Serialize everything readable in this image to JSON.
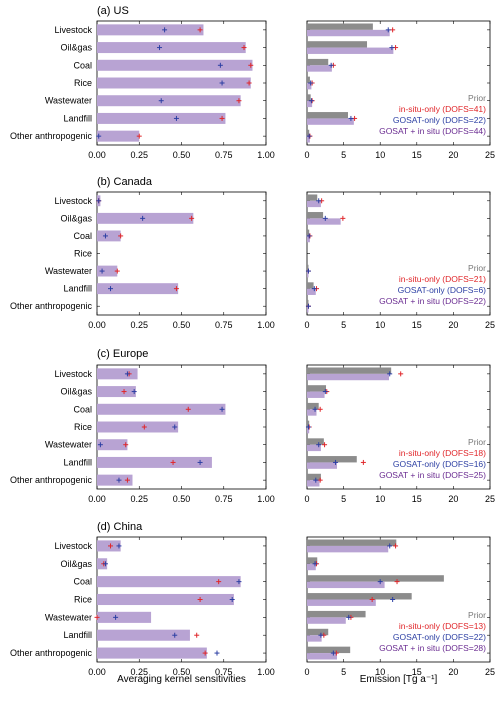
{
  "colors": {
    "combined_bar": "#b8a3d3",
    "prior_bar": "#8c8c8c",
    "combined_light_bar": "#b8a3d3",
    "insitu": "#e0262a",
    "gosat": "#2c3fa3",
    "combined": "#6a2c91",
    "prior_text": "#777777"
  },
  "left_axis": {
    "label": "Averaging kernel sensitivities",
    "ticks": [
      "0.00",
      "0.25",
      "0.50",
      "0.75",
      "1.00"
    ],
    "xlim": [
      0,
      1
    ]
  },
  "right_axis": {
    "label": "Emission [Tg a⁻¹]",
    "ticks": [
      "0",
      "5",
      "10",
      "15",
      "20",
      "25"
    ],
    "xlim": [
      0,
      25
    ]
  },
  "categories": [
    "Livestock",
    "Oil&gas",
    "Coal",
    "Rice",
    "Wastewater",
    "Landfill",
    "Other anthropogenic"
  ],
  "chart_data": [
    {
      "type": "bar",
      "title": "(a) US",
      "categories": [
        "Livestock",
        "Oil&gas",
        "Coal",
        "Rice",
        "Wastewater",
        "Landfill",
        "Other anthropogenic"
      ],
      "averaging_kernel": {
        "xlim": [
          0,
          1
        ],
        "series": [
          {
            "name": "GOSAT + in situ",
            "values": [
              0.63,
              0.88,
              0.92,
              0.91,
              0.85,
              0.76,
              0.25
            ]
          },
          {
            "name": "in-situ-only",
            "values": [
              0.61,
              0.87,
              0.91,
              0.9,
              0.84,
              0.74,
              0.25
            ]
          },
          {
            "name": "GOSAT-only",
            "values": [
              0.4,
              0.37,
              0.73,
              0.74,
              0.38,
              0.47,
              0.01
            ]
          }
        ]
      },
      "emission": {
        "xlim": [
          0,
          25
        ],
        "legend": [
          "Prior",
          "in-situ-only (DOFS=41)",
          "GOSAT-only (DOFS=22)",
          "GOSAT + in situ (DOFS=44)"
        ],
        "series": [
          {
            "name": "Prior",
            "values": [
              9.0,
              8.2,
              2.9,
              0.4,
              0.5,
              5.6,
              0.3
            ]
          },
          {
            "name": "GOSAT + in situ",
            "values": [
              11.3,
              11.8,
              3.4,
              0.6,
              0.7,
              6.4,
              0.4
            ]
          },
          {
            "name": "in-situ-only",
            "values": [
              11.7,
              12.1,
              3.6,
              0.7,
              0.7,
              6.5,
              0.4
            ]
          },
          {
            "name": "GOSAT-only",
            "values": [
              11.1,
              11.6,
              3.3,
              0.5,
              0.6,
              6.0,
              0.3
            ]
          }
        ]
      }
    },
    {
      "type": "bar",
      "title": "(b) Canada",
      "categories": [
        "Livestock",
        "Oil&gas",
        "Coal",
        "Rice",
        "Wastewater",
        "Landfill",
        "Other anthropogenic"
      ],
      "averaging_kernel": {
        "xlim": [
          0,
          1
        ],
        "series": [
          {
            "name": "GOSAT + in situ",
            "values": [
              0.02,
              0.57,
              0.14,
              0.0,
              0.12,
              0.48,
              0.0
            ]
          },
          {
            "name": "in-situ-only",
            "values": [
              0.01,
              0.56,
              0.14,
              0.0,
              0.12,
              0.47,
              0.0
            ]
          },
          {
            "name": "GOSAT-only",
            "values": [
              0.01,
              0.27,
              0.05,
              0.0,
              0.03,
              0.08,
              0.0
            ]
          }
        ]
      },
      "emission": {
        "xlim": [
          0,
          25
        ],
        "legend": [
          "Prior",
          "in-situ-only (DOFS=21)",
          "GOSAT-only (DOFS=6)",
          "GOSAT + in situ (DOFS=22)"
        ],
        "series": [
          {
            "name": "Prior",
            "values": [
              1.4,
              2.2,
              0.3,
              0.0,
              0.2,
              0.9,
              0.2
            ]
          },
          {
            "name": "GOSAT + in situ",
            "values": [
              1.9,
              4.6,
              0.4,
              0.0,
              0.2,
              1.2,
              0.2
            ]
          },
          {
            "name": "in-situ-only",
            "values": [
              2.0,
              4.9,
              0.4,
              0.0,
              0.2,
              1.3,
              0.2
            ]
          },
          {
            "name": "GOSAT-only",
            "values": [
              1.6,
              2.5,
              0.3,
              0.0,
              0.2,
              1.0,
              0.2
            ]
          }
        ]
      }
    },
    {
      "type": "bar",
      "title": "(c) Europe",
      "categories": [
        "Livestock",
        "Oil&gas",
        "Coal",
        "Rice",
        "Wastewater",
        "Landfill",
        "Other anthropogenic"
      ],
      "averaging_kernel": {
        "xlim": [
          0,
          1
        ],
        "series": [
          {
            "name": "GOSAT + in situ",
            "values": [
              0.24,
              0.23,
              0.76,
              0.48,
              0.18,
              0.68,
              0.21
            ]
          },
          {
            "name": "in-situ-only",
            "values": [
              0.19,
              0.16,
              0.54,
              0.28,
              0.17,
              0.45,
              0.18
            ]
          },
          {
            "name": "GOSAT-only",
            "values": [
              0.18,
              0.22,
              0.74,
              0.46,
              0.02,
              0.61,
              0.13
            ]
          }
        ]
      },
      "emission": {
        "xlim": [
          0,
          25
        ],
        "legend": [
          "Prior",
          "in-situ-only (DOFS=18)",
          "GOSAT-only (DOFS=16)",
          "GOSAT + in situ (DOFS=25)"
        ],
        "series": [
          {
            "name": "Prior",
            "values": [
              11.5,
              2.6,
              1.6,
              0.3,
              2.3,
              6.8,
              1.9
            ]
          },
          {
            "name": "GOSAT + in situ",
            "values": [
              11.2,
              2.4,
              1.3,
              0.3,
              1.9,
              4.1,
              1.7
            ]
          },
          {
            "name": "in-situ-only",
            "values": [
              12.8,
              2.7,
              1.8,
              0.3,
              2.4,
              7.7,
              1.8
            ]
          },
          {
            "name": "GOSAT-only",
            "values": [
              11.3,
              2.5,
              1.1,
              0.2,
              1.6,
              3.9,
              1.2
            ]
          }
        ]
      }
    },
    {
      "type": "bar",
      "title": "(d) China",
      "categories": [
        "Livestock",
        "Oil&gas",
        "Coal",
        "Rice",
        "Wastewater",
        "Landfill",
        "Other anthropogenic"
      ],
      "averaging_kernel": {
        "xlim": [
          0,
          1
        ],
        "series": [
          {
            "name": "GOSAT + in situ",
            "values": [
              0.14,
              0.06,
              0.85,
              0.81,
              0.32,
              0.55,
              0.65
            ]
          },
          {
            "name": "in-situ-only",
            "values": [
              0.08,
              0.04,
              0.72,
              0.61,
              0.0,
              0.59,
              0.64
            ]
          },
          {
            "name": "GOSAT-only",
            "values": [
              0.13,
              0.05,
              0.84,
              0.8,
              0.11,
              0.46,
              0.71
            ]
          }
        ]
      },
      "emission": {
        "xlim": [
          0,
          25
        ],
        "legend": [
          "Prior",
          "in-situ-only (DOFS=13)",
          "GOSAT-only (DOFS=22)",
          "GOSAT + in situ (DOFS=28)"
        ],
        "series": [
          {
            "name": "Prior",
            "values": [
              12.2,
              1.4,
              18.7,
              14.3,
              8.0,
              2.9,
              5.9
            ]
          },
          {
            "name": "GOSAT + in situ",
            "values": [
              11.1,
              1.2,
              10.6,
              9.4,
              5.3,
              2.0,
              4.1
            ]
          },
          {
            "name": "in-situ-only",
            "values": [
              12.1,
              1.3,
              12.3,
              8.9,
              6.0,
              2.3,
              4.0
            ]
          },
          {
            "name": "GOSAT-only",
            "values": [
              11.3,
              1.1,
              10.0,
              11.7,
              5.7,
              1.9,
              3.6
            ]
          }
        ]
      }
    }
  ]
}
